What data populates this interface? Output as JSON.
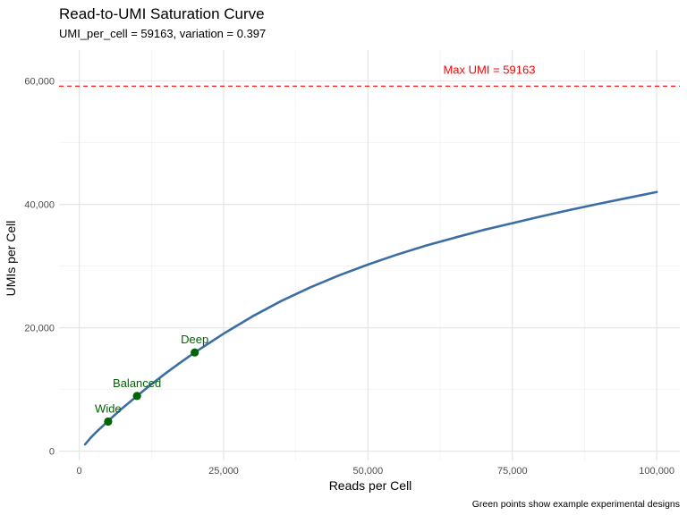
{
  "chart_data": {
    "type": "line",
    "title": "Read-to-UMI Saturation Curve",
    "subtitle": "UMI_per_cell = 59163, variation = 0.397",
    "xlabel": "Reads per Cell",
    "ylabel": "UMIs per Cell",
    "caption": "Green points show example experimental designs",
    "xlim": [
      -3500,
      104000
    ],
    "ylim": [
      -1500,
      65000
    ],
    "x_ticks": [
      0,
      25000,
      50000,
      75000,
      100000
    ],
    "x_tick_labels": [
      "0",
      "25,000",
      "50,000",
      "75,000",
      "100,000"
    ],
    "y_ticks": [
      0,
      20000,
      40000,
      60000
    ],
    "y_tick_labels": [
      "0",
      "20,000",
      "40,000",
      "60,000"
    ],
    "grid": true,
    "series": [
      {
        "color": "#3A6EA5",
        "x": [
          1000,
          2000,
          3000,
          5000,
          7500,
          10000,
          12500,
          15000,
          17500,
          20000,
          25000,
          30000,
          35000,
          40000,
          45000,
          50000,
          55000,
          60000,
          65000,
          70000,
          75000,
          80000,
          85000,
          90000,
          95000,
          100000
        ],
        "y": [
          1100,
          2200,
          3150,
          4900,
          7000,
          8950,
          10850,
          12650,
          14350,
          16000,
          19050,
          21850,
          24350,
          26550,
          28500,
          30250,
          31850,
          33300,
          34600,
          35850,
          36950,
          38050,
          39100,
          40100,
          41050,
          42000
        ]
      }
    ],
    "points": {
      "color": "#006400",
      "items": [
        {
          "label": "Wide",
          "x": 5000,
          "y": 4800
        },
        {
          "label": "Balanced",
          "x": 10000,
          "y": 8950
        },
        {
          "label": "Deep",
          "x": 20000,
          "y": 16000
        }
      ]
    },
    "reference_line": {
      "y": 59163,
      "label": "Max UMI = 59163",
      "label_x": 71000,
      "color": "#ff0000",
      "style": "dashed"
    }
  }
}
